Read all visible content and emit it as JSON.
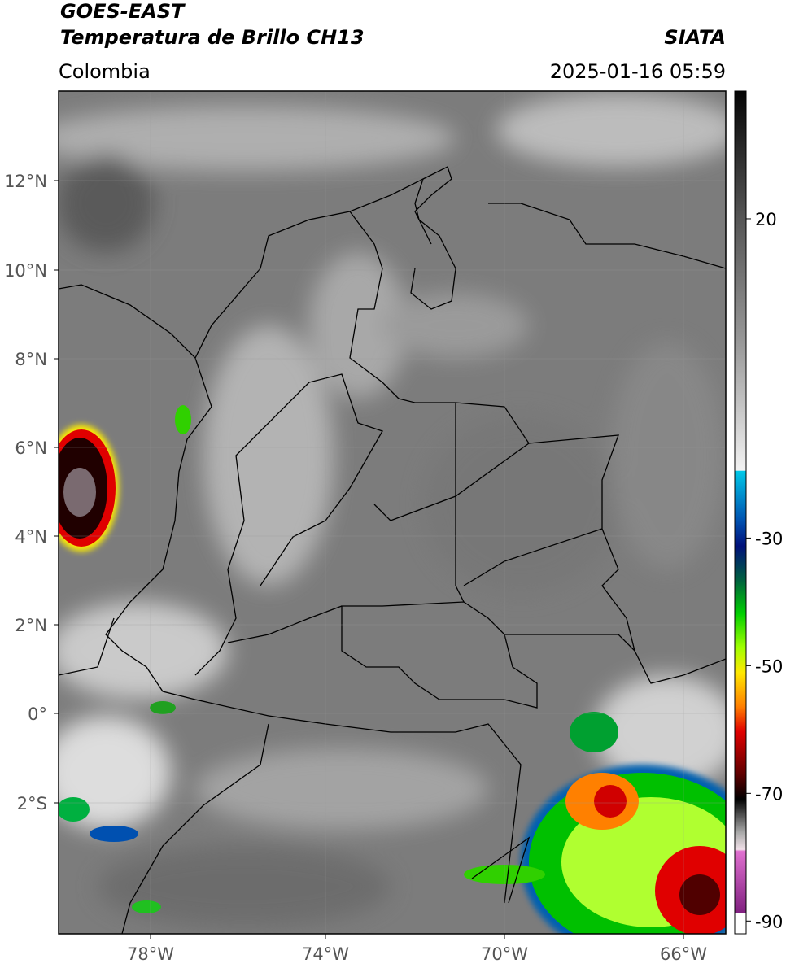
{
  "header": {
    "title": "GOES-EAST",
    "subtitle": "Temperatura de Brillo CH13",
    "source": "SIATA",
    "region": "Colombia",
    "timestamp": "2025-01-16 05:59"
  },
  "map": {
    "lat_ticks": [
      "12°N",
      "10°N",
      "8°N",
      "6°N",
      "4°N",
      "2°N",
      "0°",
      "2°S"
    ],
    "lon_ticks": [
      "78°W",
      "74°W",
      "70°W",
      "66°W"
    ]
  },
  "colorbar": {
    "lim": [
      40,
      -92
    ],
    "ticks": [
      20,
      -30,
      -50,
      -70,
      -90
    ]
  }
}
